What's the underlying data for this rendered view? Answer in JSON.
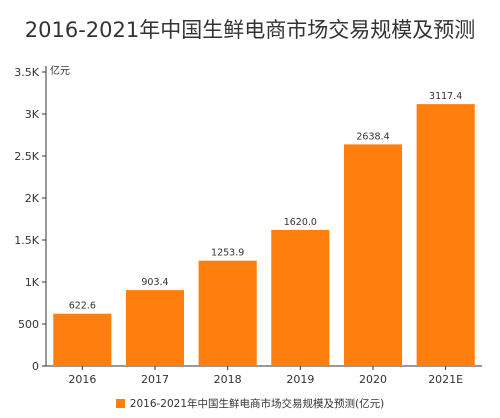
{
  "chart_data": {
    "type": "bar",
    "title": "2016-2021年中国生鲜电商市场交易规模及预测",
    "unit_label": "亿元",
    "categories": [
      "2016",
      "2017",
      "2018",
      "2019",
      "2020",
      "2021E"
    ],
    "series": [
      {
        "name": "2016-2021年中国生鲜电商市场交易规模及预测(亿元)",
        "values": [
          622.6,
          903.4,
          1253.9,
          1620.0,
          2638.4,
          3117.4
        ],
        "value_labels": [
          "622.6",
          "903.4",
          "1253.9",
          "1620.0",
          "2638.4",
          "3117.4"
        ]
      }
    ],
    "ylim": [
      0,
      3500
    ],
    "yticks": [
      0,
      500,
      1000,
      1500,
      2000,
      2500,
      3000,
      3500
    ],
    "ytick_labels": [
      "0",
      "500",
      "1K",
      "1.5K",
      "2K",
      "2.5K",
      "3K",
      "3.5K"
    ],
    "grid": false,
    "legend_position": "bottom",
    "bar_color": "#FF7F0E",
    "axis_color": "#333333"
  }
}
